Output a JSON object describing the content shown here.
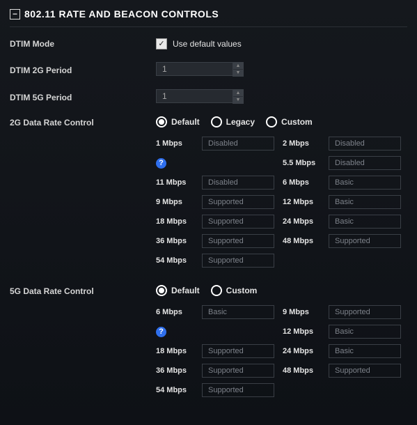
{
  "section": {
    "title": "802.11 RATE AND BEACON CONTROLS"
  },
  "dtim_mode": {
    "label": "DTIM Mode",
    "checkbox_label": "Use default values",
    "checked": true
  },
  "dtim2g": {
    "label": "DTIM 2G Period",
    "value": "1"
  },
  "dtim5g": {
    "label": "DTIM 5G Period",
    "value": "1"
  },
  "rc2g": {
    "label": "2G Data Rate Control",
    "options": [
      {
        "label": "Default",
        "v": true
      },
      {
        "label": "Legacy",
        "v": false
      },
      {
        "label": "Custom",
        "v": false
      }
    ],
    "left": [
      {
        "lbl": "1 Mbps",
        "val": "Disabled"
      },
      {
        "help": true
      },
      {
        "lbl": "11 Mbps",
        "val": "Disabled"
      },
      {
        "lbl": "9 Mbps",
        "val": "Supported"
      },
      {
        "lbl": "18 Mbps",
        "val": "Supported"
      },
      {
        "lbl": "36 Mbps",
        "val": "Supported"
      },
      {
        "lbl": "54 Mbps",
        "val": "Supported"
      }
    ],
    "right": [
      {
        "lbl": "2 Mbps",
        "val": "Disabled"
      },
      {
        "lbl": "5.5 Mbps",
        "val": "Disabled"
      },
      {
        "lbl": "6 Mbps",
        "val": "Basic"
      },
      {
        "lbl": "12 Mbps",
        "val": "Basic"
      },
      {
        "lbl": "24 Mbps",
        "val": "Basic"
      },
      {
        "lbl": "48 Mbps",
        "val": "Supported"
      }
    ]
  },
  "rc5g": {
    "label": "5G Data Rate Control",
    "options": [
      {
        "label": "Default",
        "v": true
      },
      {
        "label": "Custom",
        "v": false
      }
    ],
    "left": [
      {
        "lbl": "6 Mbps",
        "val": "Basic"
      },
      {
        "help": true
      },
      {
        "lbl": "18 Mbps",
        "val": "Supported"
      },
      {
        "lbl": "36 Mbps",
        "val": "Supported"
      },
      {
        "lbl": "54 Mbps",
        "val": "Supported"
      }
    ],
    "right": [
      {
        "lbl": "9 Mbps",
        "val": "Supported"
      },
      {
        "lbl": "12 Mbps",
        "val": "Basic"
      },
      {
        "lbl": "24 Mbps",
        "val": "Basic"
      },
      {
        "lbl": "48 Mbps",
        "val": "Supported"
      }
    ]
  },
  "colors": {
    "accent": "#2f6fed",
    "border": "#3a3f46",
    "text_muted": "#7d828a"
  }
}
